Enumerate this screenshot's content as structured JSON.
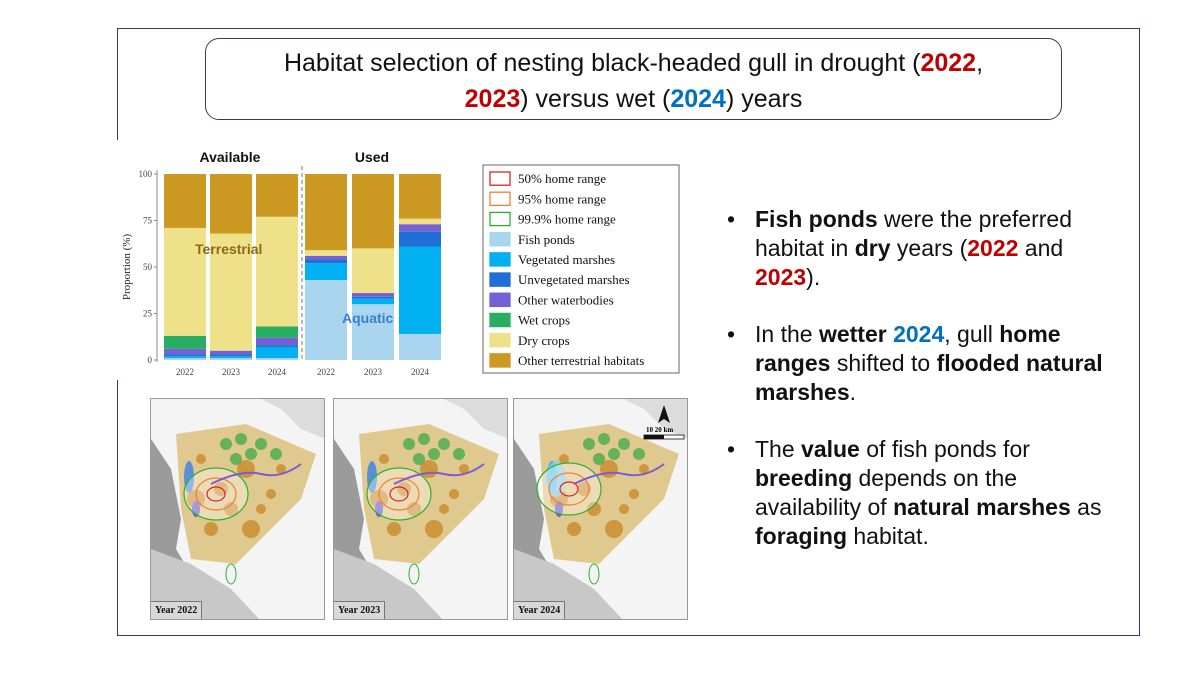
{
  "title": {
    "line1_pre": "Habitat selection of nesting black-headed gull in drought (",
    "year_a": "2022",
    "comma": ",",
    "year_b": "2023",
    "line2_mid": ") versus wet (",
    "year_c": "2024",
    "line2_end": ") years"
  },
  "chart_data": {
    "type": "bar",
    "stacked": true,
    "groups": [
      {
        "label": "Available",
        "categories": [
          "2022",
          "2023",
          "2024"
        ]
      },
      {
        "label": "Used",
        "categories": [
          "2022",
          "2023",
          "2024"
        ]
      }
    ],
    "categories": [
      "2022",
      "2023",
      "2024",
      "2022",
      "2023",
      "2024"
    ],
    "ylabel": "Proportion (%)",
    "ylim": [
      0,
      100
    ],
    "yticks": [
      "0",
      "25",
      "50",
      "75",
      "100"
    ],
    "annotations": {
      "terrestrial": "Terrestrial",
      "aquatic": "Aquatic"
    },
    "series": [
      {
        "name": "Fish ponds",
        "color": "#a9d5ee",
        "values": [
          1,
          1,
          1,
          43,
          30,
          14
        ]
      },
      {
        "name": "Vegetated marshes",
        "color": "#00b0f0",
        "values": [
          1,
          1,
          6,
          9,
          3,
          47
        ]
      },
      {
        "name": "Unvegetated marshes",
        "color": "#1f6fd6",
        "values": [
          1,
          1,
          1,
          2,
          1,
          8
        ]
      },
      {
        "name": "Other waterbodies",
        "color": "#7461d6",
        "values": [
          3,
          2,
          4,
          2,
          2,
          4
        ]
      },
      {
        "name": "Wet crops",
        "color": "#27ae60",
        "values": [
          7,
          0,
          6,
          0,
          0,
          0
        ]
      },
      {
        "name": "Dry crops",
        "color": "#efe08a",
        "values": [
          58,
          63,
          59,
          3,
          24,
          3
        ]
      },
      {
        "name": "Other terrestrial habitats",
        "color": "#cc9a22",
        "values": [
          29,
          32,
          23,
          41,
          40,
          24
        ]
      }
    ],
    "legend": {
      "position": "right",
      "outline_items": [
        {
          "label": "50%    home range",
          "color": "#e02020"
        },
        {
          "label": "95%    home range",
          "color": "#f08030"
        },
        {
          "label": "99.9% home range",
          "color": "#30b030"
        }
      ]
    }
  },
  "bullets": {
    "b1": {
      "bold1": "Fish ponds",
      "t1": " were the preferred habitat in ",
      "bold2": "dry",
      "t2": " years (",
      "y1": "2022",
      "t3": " and ",
      "y2": "2023",
      "t4": ")."
    },
    "b2": {
      "t1": "In the ",
      "bold1": "wetter",
      "y1": "2024",
      "t2": ", gull ",
      "bold2": "home ranges",
      "t3": " shifted to ",
      "bold3": "flooded natural marshes",
      "t4": "."
    },
    "b3": {
      "t1": "The ",
      "bold1": "value",
      "t2": " of fish ponds for ",
      "bold2": "breeding",
      "t3": " depends on the availability of ",
      "bold3": "natural marshes",
      "t4": " as ",
      "bold4": "foraging",
      "t5": " habitat."
    }
  },
  "maps": {
    "labels": [
      "Year 2022",
      "Year 2023",
      "Year 2024"
    ],
    "scale_label": "10   20 km",
    "north_label": "A"
  }
}
